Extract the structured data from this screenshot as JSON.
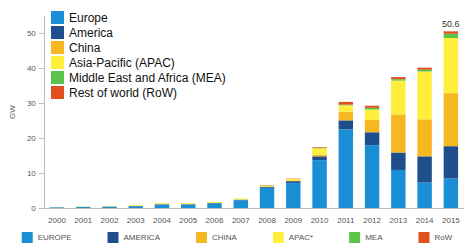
{
  "chart_data": {
    "type": "bar",
    "stacked": true,
    "y_label": "GW",
    "categories": [
      "2000",
      "2001",
      "2002",
      "2003",
      "2004",
      "2005",
      "2006",
      "2007",
      "2008",
      "2009",
      "2010",
      "2011",
      "2012",
      "2013",
      "2014",
      "2015"
    ],
    "series": [
      {
        "name": "EUROPE",
        "long_name": "Europe",
        "color": "#1a8fd6",
        "values": [
          0.2,
          0.3,
          0.4,
          0.5,
          1.0,
          1.0,
          1.3,
          2.2,
          5.8,
          7.2,
          13.7,
          22.5,
          18.0,
          10.9,
          7.3,
          8.5
        ]
      },
      {
        "name": "AMERICA",
        "long_name": "America",
        "color": "#1f4e8c",
        "values": [
          0.02,
          0.03,
          0.05,
          0.07,
          0.1,
          0.1,
          0.15,
          0.2,
          0.3,
          0.5,
          1.1,
          2.6,
          3.7,
          5.0,
          7.5,
          9.2
        ]
      },
      {
        "name": "CHINA",
        "long_name": "China",
        "color": "#f5b820",
        "values": [
          0,
          0,
          0,
          0,
          0,
          0,
          0,
          0,
          0,
          0.2,
          0.5,
          2.5,
          3.5,
          10.9,
          10.6,
          15.2
        ]
      },
      {
        "name": "APAC*",
        "long_name": "Asia-Pacific (APAC)",
        "color": "#ffef3a",
        "values": [
          0.05,
          0.1,
          0.15,
          0.2,
          0.3,
          0.3,
          0.3,
          0.3,
          0.3,
          0.4,
          1.8,
          1.8,
          3.0,
          9.7,
          13.7,
          15.8
        ]
      },
      {
        "name": "MEA",
        "long_name": "Middle East and Africa (MEA)",
        "color": "#5ac34a",
        "values": [
          0,
          0,
          0,
          0,
          0,
          0,
          0,
          0,
          0.05,
          0,
          0.1,
          0.2,
          0.5,
          0.4,
          0.5,
          1.2
        ]
      },
      {
        "name": "RoW",
        "long_name": "Rest of world (RoW)",
        "color": "#e0501e",
        "values": [
          0,
          0,
          0,
          0,
          0,
          0,
          0,
          0,
          0.1,
          0.1,
          0.2,
          0.8,
          0.6,
          0.6,
          0.6,
          0.7
        ]
      }
    ],
    "annotations": [
      {
        "text": "50.6",
        "x": "2015",
        "y": 50.6
      }
    ],
    "ylim": [
      0,
      55
    ],
    "yticks": [
      0,
      10,
      20,
      30,
      40,
      50
    ],
    "grid": false,
    "legend": "bottom"
  }
}
